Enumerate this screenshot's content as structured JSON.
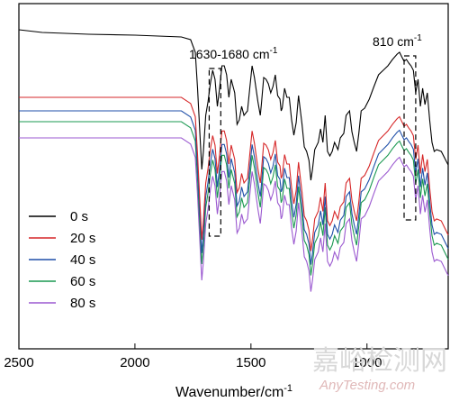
{
  "chart_data": {
    "type": "line",
    "xlabel": "Wavenumber/cm",
    "xlabel_superscript": "-1",
    "xlim": [
      2500,
      650
    ],
    "x_ticks": [
      2500,
      2000,
      1500,
      1000
    ],
    "x_tick_labels": [
      "2500",
      "2000",
      "1500",
      "1000"
    ],
    "y_ticks_shown": false,
    "grid": false,
    "legend_position": "lower-left",
    "annotations": [
      {
        "text": "1630-1680 cm",
        "superscript": "-1",
        "range": [
          1680,
          1630
        ]
      },
      {
        "text": "810 cm",
        "superscript": "-1",
        "range": [
          840,
          790
        ]
      }
    ],
    "series": [
      {
        "name": "0 s",
        "color": "#000000",
        "offset": 0,
        "points": [
          [
            2500,
            5
          ],
          [
            2400,
            8
          ],
          [
            2200,
            10
          ],
          [
            2000,
            11
          ],
          [
            1900,
            12
          ],
          [
            1800,
            13
          ],
          [
            1760,
            16
          ],
          [
            1740,
            30
          ],
          [
            1730,
            70
          ],
          [
            1720,
            120
          ],
          [
            1712,
            160
          ],
          [
            1705,
            140
          ],
          [
            1695,
            100
          ],
          [
            1685,
            85
          ],
          [
            1675,
            65
          ],
          [
            1665,
            50
          ],
          [
            1655,
            60
          ],
          [
            1645,
            90
          ],
          [
            1635,
            70
          ],
          [
            1625,
            45
          ],
          [
            1615,
            45
          ],
          [
            1605,
            55
          ],
          [
            1595,
            80
          ],
          [
            1585,
            60
          ],
          [
            1570,
            75
          ],
          [
            1560,
            110
          ],
          [
            1550,
            105
          ],
          [
            1540,
            90
          ],
          [
            1530,
            100
          ],
          [
            1515,
            95
          ],
          [
            1505,
            70
          ],
          [
            1495,
            45
          ],
          [
            1485,
            58
          ],
          [
            1470,
            85
          ],
          [
            1460,
            100
          ],
          [
            1455,
            88
          ],
          [
            1445,
            58
          ],
          [
            1435,
            60
          ],
          [
            1425,
            65
          ],
          [
            1415,
            75
          ],
          [
            1405,
            68
          ],
          [
            1395,
            55
          ],
          [
            1385,
            78
          ],
          [
            1375,
            82
          ],
          [
            1370,
            95
          ],
          [
            1365,
            92
          ],
          [
            1355,
            70
          ],
          [
            1345,
            80
          ],
          [
            1335,
            80
          ],
          [
            1325,
            105
          ],
          [
            1315,
            122
          ],
          [
            1305,
            108
          ],
          [
            1295,
            78
          ],
          [
            1280,
            110
          ],
          [
            1270,
            135
          ],
          [
            1260,
            140
          ],
          [
            1250,
            150
          ],
          [
            1242,
            172
          ],
          [
            1235,
            160
          ],
          [
            1225,
            138
          ],
          [
            1210,
            130
          ],
          [
            1200,
            115
          ],
          [
            1190,
            130
          ],
          [
            1180,
            100
          ],
          [
            1170,
            140
          ],
          [
            1160,
            145
          ],
          [
            1150,
            140
          ],
          [
            1140,
            130
          ],
          [
            1125,
            138
          ],
          [
            1115,
            125
          ],
          [
            1100,
            120
          ],
          [
            1090,
            100
          ],
          [
            1075,
            95
          ],
          [
            1065,
            118
          ],
          [
            1055,
            130
          ],
          [
            1045,
            140
          ],
          [
            1035,
            120
          ],
          [
            1025,
            95
          ],
          [
            1010,
            92
          ],
          [
            990,
            82
          ],
          [
            970,
            68
          ],
          [
            950,
            55
          ],
          [
            930,
            50
          ],
          [
            910,
            45
          ],
          [
            890,
            38
          ],
          [
            870,
            32
          ],
          [
            860,
            30
          ],
          [
            850,
            35
          ],
          [
            840,
            40
          ],
          [
            830,
            38
          ],
          [
            820,
            42
          ],
          [
            810,
            45
          ],
          [
            800,
            50
          ],
          [
            790,
            75
          ],
          [
            780,
            60
          ],
          [
            770,
            90
          ],
          [
            760,
            70
          ],
          [
            750,
            88
          ],
          [
            740,
            75
          ],
          [
            730,
            105
          ],
          [
            720,
            130
          ],
          [
            710,
            140
          ],
          [
            700,
            138
          ],
          [
            680,
            140
          ],
          [
            660,
            150
          ],
          [
            650,
            155
          ]
        ]
      },
      {
        "name": "20 s",
        "color": "#d62728",
        "offset": 70
      },
      {
        "name": "40 s",
        "color": "#1f4fa8",
        "offset": 85
      },
      {
        "name": "60 s",
        "color": "#1a9850",
        "offset": 97
      },
      {
        "name": "80 s",
        "color": "#9b59d0",
        "offset": 115
      }
    ]
  },
  "watermark": {
    "cn": "嘉峪检测网",
    "en": "AnyTesting.com"
  }
}
